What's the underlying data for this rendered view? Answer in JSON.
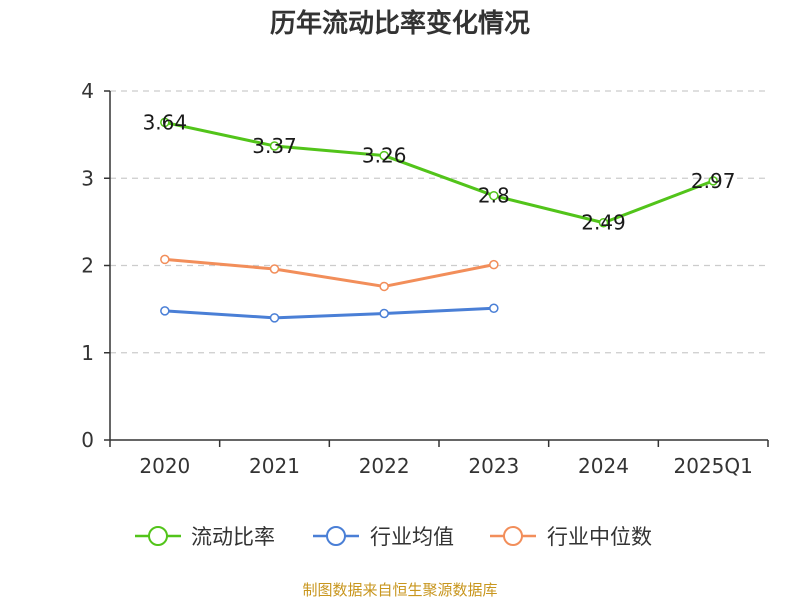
{
  "chart_data": {
    "type": "line",
    "title": "历年流动比率变化情况",
    "categories": [
      "2020",
      "2021",
      "2022",
      "2023",
      "2024",
      "2025Q1"
    ],
    "ylim": [
      0,
      4
    ],
    "yticks": [
      0,
      1,
      2,
      3,
      4
    ],
    "grid": true,
    "legend_position": "bottom",
    "series": [
      {
        "name": "流动比率",
        "color": "#52c41a",
        "labels": true,
        "values": [
          3.64,
          3.37,
          3.26,
          2.8,
          2.49,
          2.97
        ]
      },
      {
        "name": "行业均值",
        "color": "#4a7fd6",
        "labels": false,
        "values": [
          1.48,
          1.4,
          1.45,
          1.51,
          null,
          null
        ]
      },
      {
        "name": "行业中位数",
        "color": "#f28e5a",
        "labels": false,
        "values": [
          2.07,
          1.96,
          1.76,
          2.01,
          null,
          null
        ]
      }
    ]
  },
  "source": "制图数据来自恒生聚源数据库"
}
